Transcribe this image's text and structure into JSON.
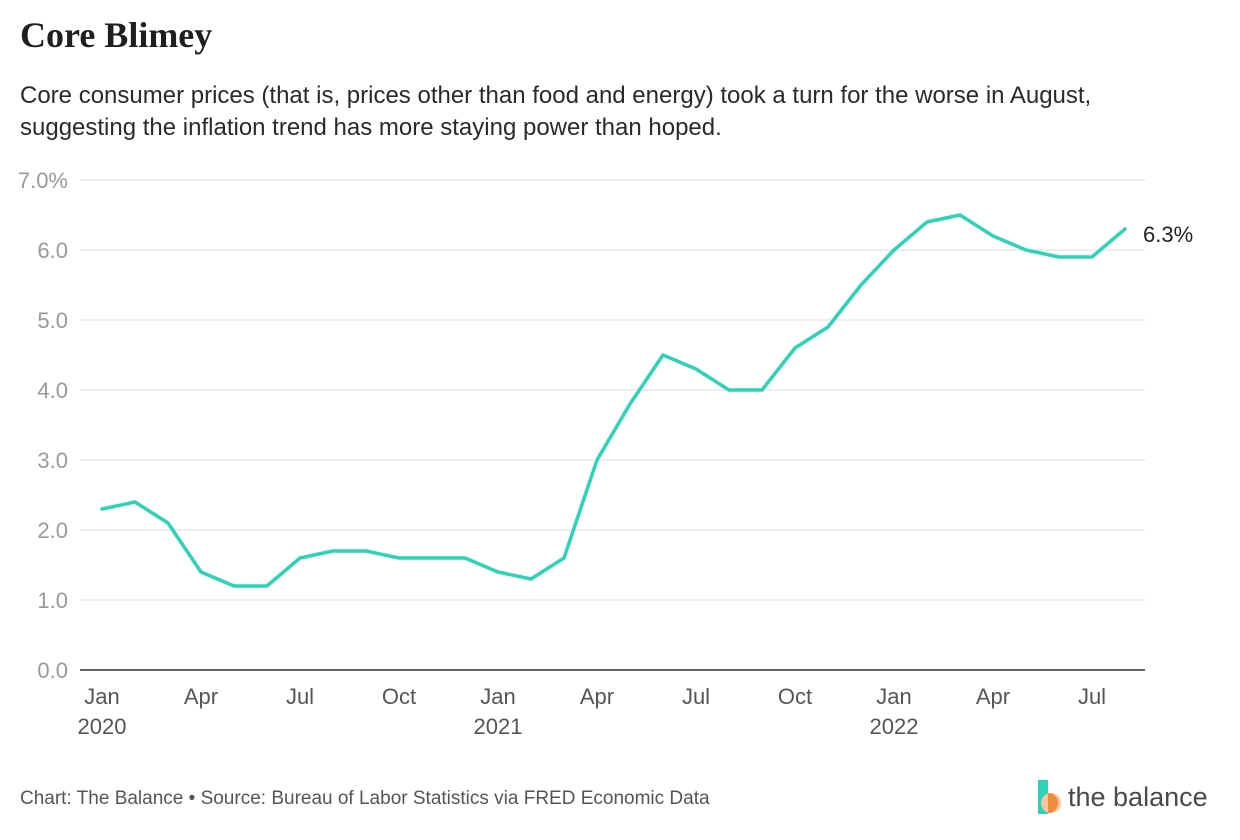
{
  "title": "Core Blimey",
  "subtitle": "Core consumer prices (that is, prices other than food and energy) took a turn for the worse in August, suggesting the inflation trend has more staying power than hoped.",
  "footer": "Chart: The Balance • Source: Bureau of Labor Statistics via FRED Economic Data",
  "logo_text": "the balance",
  "colors": {
    "line": "#2ed3b7",
    "grid": "#dddddd",
    "axis": "#333333",
    "tick_text": "#999999",
    "x_text": "#555555",
    "logo_teal": "#2ed3b7",
    "logo_orange": "#f7c59f"
  },
  "chart_data": {
    "type": "line",
    "title": "Core Blimey",
    "xlabel": "",
    "ylabel": "",
    "ylim": [
      0,
      7
    ],
    "y_ticks": [
      "0.0",
      "1.0",
      "2.0",
      "3.0",
      "4.0",
      "5.0",
      "6.0",
      "7.0%"
    ],
    "x_ticks": [
      {
        "index": 0,
        "label": "Jan",
        "year": "2020"
      },
      {
        "index": 3,
        "label": "Apr",
        "year": ""
      },
      {
        "index": 6,
        "label": "Jul",
        "year": ""
      },
      {
        "index": 9,
        "label": "Oct",
        "year": ""
      },
      {
        "index": 12,
        "label": "Jan",
        "year": "2021"
      },
      {
        "index": 15,
        "label": "Apr",
        "year": ""
      },
      {
        "index": 18,
        "label": "Jul",
        "year": ""
      },
      {
        "index": 21,
        "label": "Oct",
        "year": ""
      },
      {
        "index": 24,
        "label": "Jan",
        "year": "2022"
      },
      {
        "index": 27,
        "label": "Apr",
        "year": ""
      },
      {
        "index": 30,
        "label": "Jul",
        "year": ""
      }
    ],
    "x": [
      "2020-01",
      "2020-02",
      "2020-03",
      "2020-04",
      "2020-05",
      "2020-06",
      "2020-07",
      "2020-08",
      "2020-09",
      "2020-10",
      "2020-11",
      "2020-12",
      "2021-01",
      "2021-02",
      "2021-03",
      "2021-04",
      "2021-05",
      "2021-06",
      "2021-07",
      "2021-08",
      "2021-09",
      "2021-10",
      "2021-11",
      "2021-12",
      "2022-01",
      "2022-02",
      "2022-03",
      "2022-04",
      "2022-05",
      "2022-06",
      "2022-07",
      "2022-08"
    ],
    "values": [
      2.3,
      2.4,
      2.1,
      1.4,
      1.2,
      1.2,
      1.6,
      1.7,
      1.7,
      1.6,
      1.6,
      1.6,
      1.4,
      1.3,
      1.6,
      3.0,
      3.8,
      4.5,
      4.3,
      4.0,
      4.0,
      4.6,
      4.9,
      5.5,
      6.0,
      6.4,
      6.5,
      6.2,
      6.0,
      5.9,
      5.9,
      6.3
    ],
    "end_label": "6.3%",
    "grid": true,
    "legend": "none"
  }
}
